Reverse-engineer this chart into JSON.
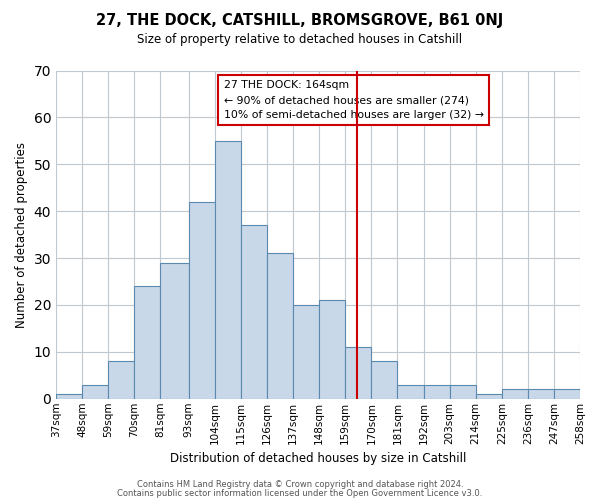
{
  "title": "27, THE DOCK, CATSHILL, BROMSGROVE, B61 0NJ",
  "subtitle": "Size of property relative to detached houses in Catshill",
  "xlabel": "Distribution of detached houses by size in Catshill",
  "ylabel": "Number of detached properties",
  "footer_lines": [
    "Contains HM Land Registry data © Crown copyright and database right 2024.",
    "Contains public sector information licensed under the Open Government Licence v3.0."
  ],
  "bin_labels": [
    "37sqm",
    "48sqm",
    "59sqm",
    "70sqm",
    "81sqm",
    "93sqm",
    "104sqm",
    "115sqm",
    "126sqm",
    "137sqm",
    "148sqm",
    "159sqm",
    "170sqm",
    "181sqm",
    "192sqm",
    "203sqm",
    "214sqm",
    "225sqm",
    "236sqm",
    "247sqm",
    "258sqm"
  ],
  "bin_edges": [
    37,
    48,
    59,
    70,
    81,
    93,
    104,
    115,
    126,
    137,
    148,
    159,
    170,
    181,
    192,
    203,
    214,
    225,
    236,
    247,
    258
  ],
  "bar_heights": [
    1,
    3,
    8,
    24,
    29,
    42,
    55,
    37,
    31,
    20,
    21,
    11,
    8,
    3,
    3,
    3,
    1,
    2,
    2,
    2
  ],
  "bar_color": "#c8d8e8",
  "bar_edgecolor": "#5a8ab0",
  "grid_color": "#c0c8d0",
  "vline_x": 164,
  "vline_color": "#cc0000",
  "annotation_title": "27 THE DOCK: 164sqm",
  "annotation_line1": "← 90% of detached houses are smaller (274)",
  "annotation_line2": "10% of semi-detached houses are larger (32) →",
  "ylim": [
    0,
    70
  ],
  "yticks": [
    0,
    10,
    20,
    30,
    40,
    50,
    60,
    70
  ]
}
